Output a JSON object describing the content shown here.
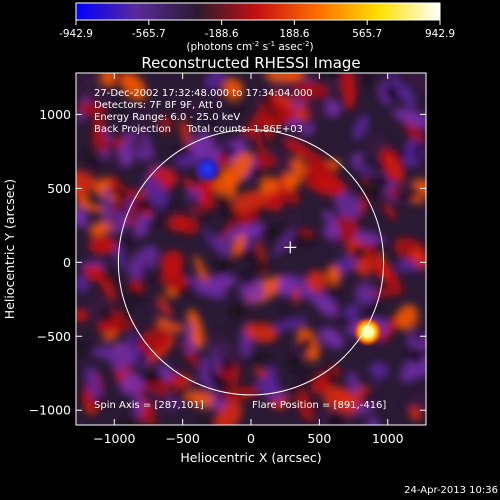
{
  "colorbar": {
    "ticks": [
      "-942.9",
      "-565.7",
      "-188.6",
      "188.6",
      "565.7",
      "942.9"
    ],
    "unit_main": "(photons cm",
    "unit_sup1": "-2",
    "unit_mid": " s",
    "unit_sup2": "-1",
    "unit_end": " asec",
    "unit_sup3": "-2",
    "unit_close": ")",
    "colors": [
      "#0000ff",
      "#5a2a9a",
      "#2a1a30",
      "#c81010",
      "#ff7000",
      "#ffe000",
      "#ffffff"
    ]
  },
  "title": "Reconstructed RHESSI Image",
  "annotations": {
    "time": "27-Dec-2002 17:32:48.000 to 17:34:04.000",
    "detectors": "Detectors: 7F 8F 9F, Att 0",
    "energy": "Energy Range: 6.0 - 25.0 keV",
    "method": "Back Projection     Total counts: 1.86E+03",
    "spin_axis": "Spin Axis = [287,101]",
    "flare_position": "Flare Position = [891,-416]"
  },
  "footer": {
    "timestamp": "24-Apr-2013 10:36"
  },
  "chart_data": {
    "type": "heatmap",
    "title": "Reconstructed RHESSI Image",
    "xlabel": "Heliocentric X (arcsec)",
    "ylabel": "Heliocentric Y (arcsec)",
    "xlim": [
      -1280,
      1280
    ],
    "ylim": [
      -1100,
      1280
    ],
    "xticks": [
      -1000,
      -500,
      0,
      500,
      1000
    ],
    "yticks": [
      -1000,
      -500,
      0,
      500,
      1000
    ],
    "xtick_labels": [
      "−1000",
      "−500",
      "0",
      "500",
      "1000"
    ],
    "ytick_labels": [
      "−1000",
      "−500",
      "0",
      "500",
      "1000"
    ],
    "value_range": [
      -942.9,
      942.9
    ],
    "solar_limb_radius": 970,
    "spin_axis": [
      287,
      101
    ],
    "flare_position": [
      891,
      -416
    ]
  }
}
